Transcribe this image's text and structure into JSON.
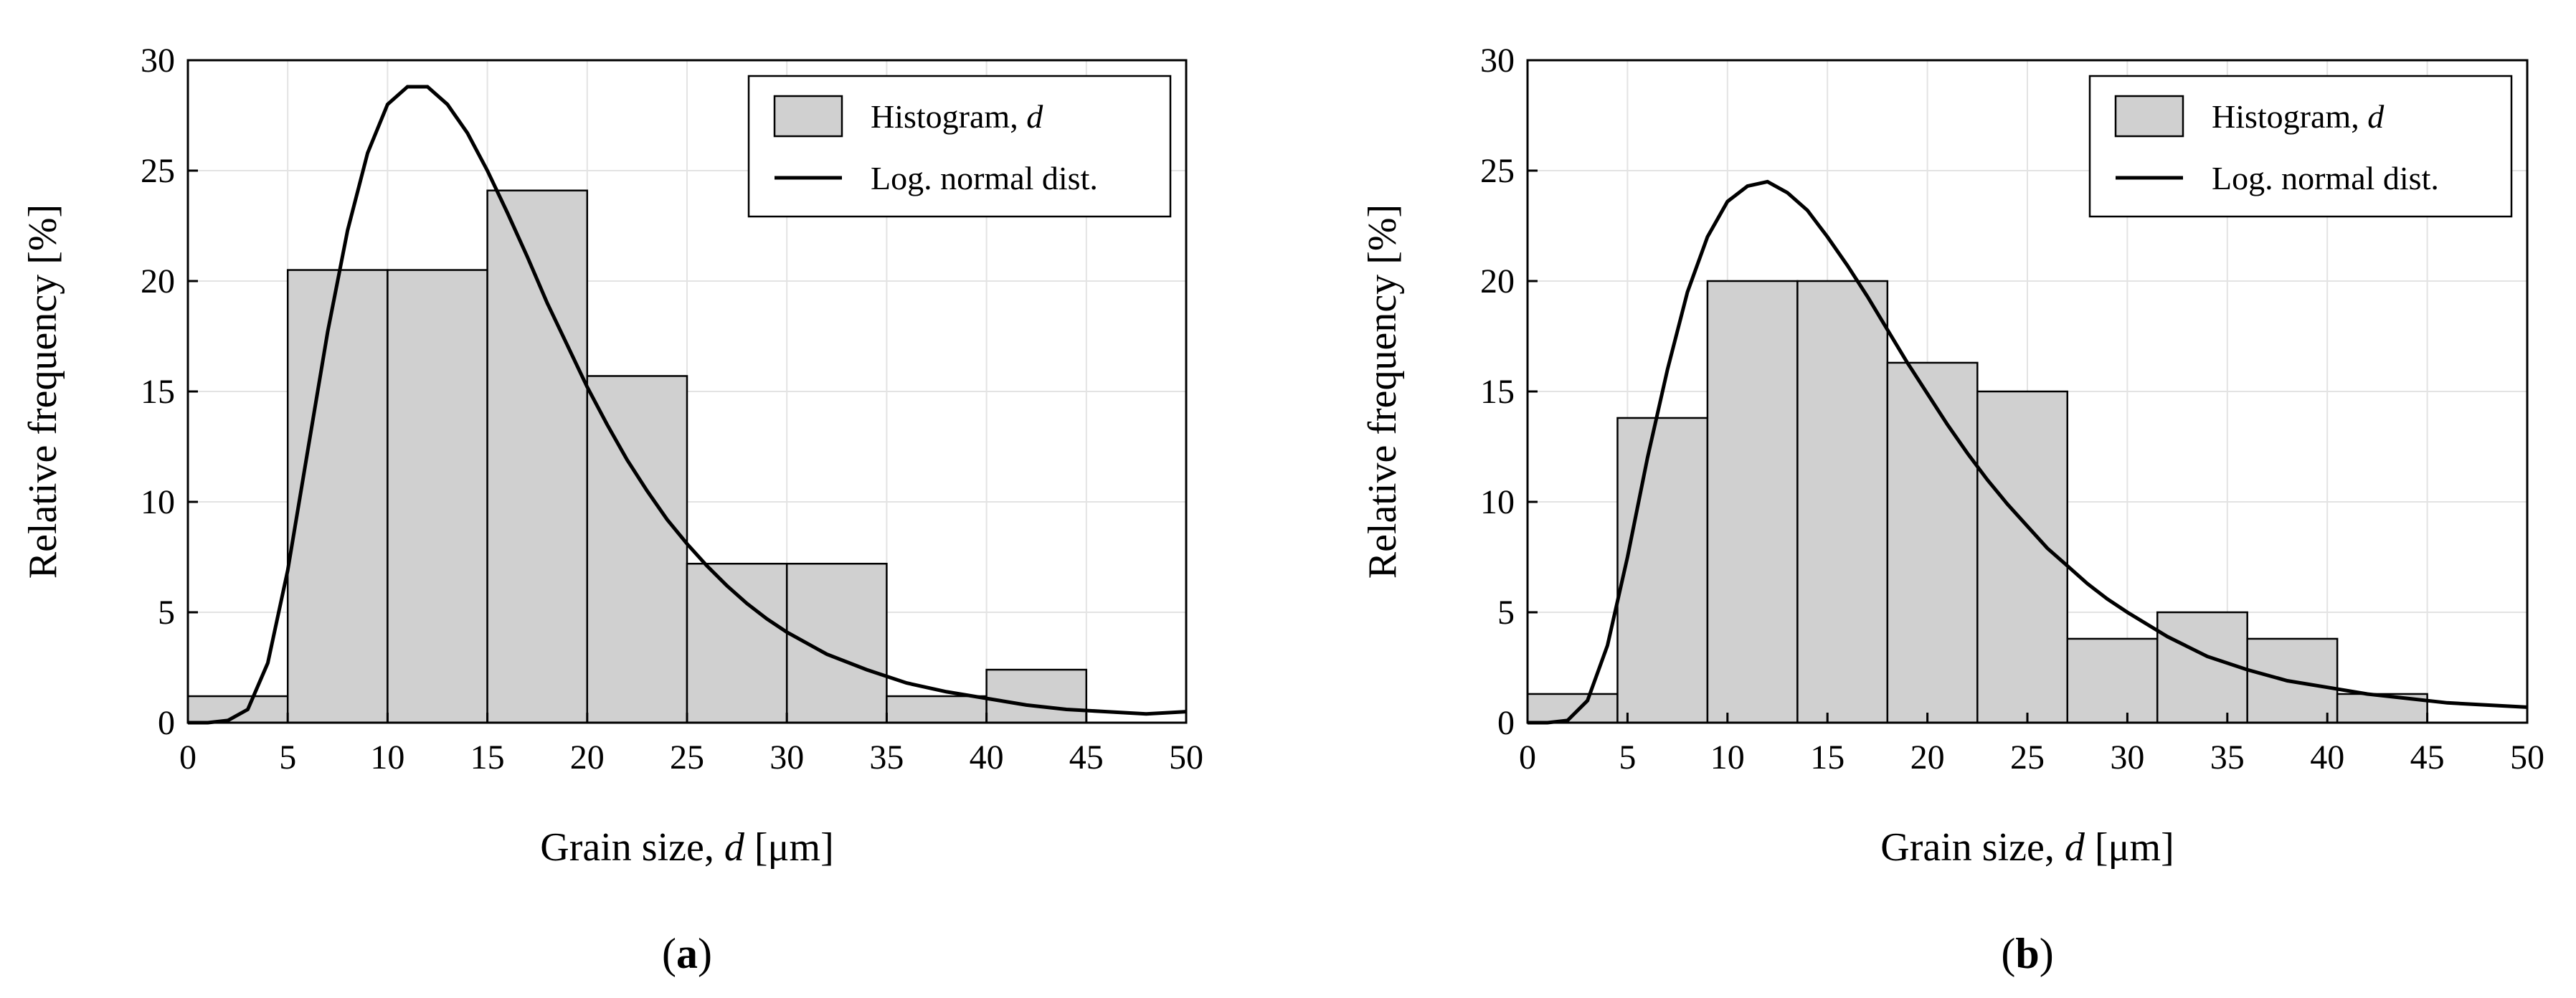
{
  "chart_data": [
    {
      "type": "bar",
      "panel_label": "a",
      "xlabel": "Grain size, d [μm]",
      "xlabel_prefix": "Grain size, ",
      "xlabel_var": "d",
      "xlabel_suffix": " [μm]",
      "ylabel": "Relative frequency [%]",
      "xlim": [
        0,
        50
      ],
      "ylim": [
        0,
        30
      ],
      "xticks": [
        0,
        5,
        10,
        15,
        20,
        25,
        30,
        35,
        40,
        45,
        50
      ],
      "yticks": [
        0,
        5,
        10,
        15,
        20,
        25,
        30
      ],
      "grid": true,
      "legend_position": "top-right",
      "legend": [
        {
          "label_prefix": "Histogram, ",
          "label_var": "d",
          "kind": "patch"
        },
        {
          "label_prefix": "Log. normal dist.",
          "label_var": "",
          "kind": "line"
        }
      ],
      "bins": [
        {
          "start": 0,
          "end": 5,
          "value": 1.2
        },
        {
          "start": 5,
          "end": 10,
          "value": 20.5
        },
        {
          "start": 10,
          "end": 15,
          "value": 20.5
        },
        {
          "start": 15,
          "end": 20,
          "value": 24.1
        },
        {
          "start": 20,
          "end": 25,
          "value": 15.7
        },
        {
          "start": 25,
          "end": 30,
          "value": 7.2
        },
        {
          "start": 30,
          "end": 35,
          "value": 7.2
        },
        {
          "start": 35,
          "end": 40,
          "value": 1.2
        },
        {
          "start": 40,
          "end": 45,
          "value": 2.4
        }
      ],
      "curve": {
        "name": "Log. normal dist.",
        "x": [
          0,
          1,
          2,
          3,
          4,
          5,
          6,
          7,
          8,
          9,
          10,
          11,
          12,
          13,
          14,
          15,
          16,
          17,
          18,
          19,
          20,
          21,
          22,
          23,
          24,
          25,
          26,
          27,
          28,
          29,
          30,
          32,
          34,
          36,
          38,
          40,
          42,
          44,
          46,
          48,
          50
        ],
        "y": [
          0,
          0.0,
          0.1,
          0.6,
          2.7,
          6.9,
          12.3,
          17.7,
          22.3,
          25.8,
          28.0,
          28.8,
          28.8,
          28.0,
          26.7,
          25.0,
          23.1,
          21.1,
          19.0,
          17.1,
          15.2,
          13.5,
          11.9,
          10.5,
          9.2,
          8.1,
          7.1,
          6.2,
          5.4,
          4.7,
          4.1,
          3.1,
          2.4,
          1.8,
          1.4,
          1.1,
          0.8,
          0.6,
          0.5,
          0.4,
          0.5
        ]
      }
    },
    {
      "type": "bar",
      "panel_label": "b",
      "xlabel": "Grain size, d [μm]",
      "xlabel_prefix": "Grain size, ",
      "xlabel_var": "d",
      "xlabel_suffix": " [μm]",
      "ylabel": "Relative frequency [%]",
      "xlim": [
        0,
        50
      ],
      "ylim": [
        0,
        30
      ],
      "xticks": [
        0,
        5,
        10,
        15,
        20,
        25,
        30,
        35,
        40,
        45,
        50
      ],
      "yticks": [
        0,
        5,
        10,
        15,
        20,
        25,
        30
      ],
      "grid": true,
      "legend_position": "top-right",
      "legend": [
        {
          "label_prefix": "Histogram, ",
          "label_var": "d",
          "kind": "patch"
        },
        {
          "label_prefix": "Log. normal dist.",
          "label_var": "",
          "kind": "line"
        }
      ],
      "bins": [
        {
          "start": 0,
          "end": 4.5,
          "value": 1.3
        },
        {
          "start": 4.5,
          "end": 9,
          "value": 13.8
        },
        {
          "start": 9,
          "end": 13.5,
          "value": 20.0
        },
        {
          "start": 13.5,
          "end": 18,
          "value": 20.0
        },
        {
          "start": 18,
          "end": 22.5,
          "value": 16.3
        },
        {
          "start": 22.5,
          "end": 27,
          "value": 15.0
        },
        {
          "start": 27,
          "end": 31.5,
          "value": 3.8
        },
        {
          "start": 31.5,
          "end": 36,
          "value": 5.0
        },
        {
          "start": 36,
          "end": 40.5,
          "value": 3.8
        },
        {
          "start": 40.5,
          "end": 45,
          "value": 1.3
        }
      ],
      "curve": {
        "name": "Log. normal dist.",
        "x": [
          0,
          1,
          2,
          3,
          4,
          5,
          6,
          7,
          8,
          9,
          10,
          11,
          12,
          13,
          14,
          15,
          16,
          17,
          18,
          19,
          20,
          21,
          22,
          23,
          24,
          25,
          26,
          27,
          28,
          29,
          30,
          32,
          34,
          36,
          38,
          40,
          42,
          44,
          46,
          48,
          50
        ],
        "y": [
          0,
          0.0,
          0.1,
          1.0,
          3.5,
          7.5,
          12.0,
          16.0,
          19.5,
          22.0,
          23.6,
          24.3,
          24.5,
          24.0,
          23.2,
          22.0,
          20.7,
          19.3,
          17.8,
          16.3,
          14.9,
          13.5,
          12.2,
          11.0,
          9.9,
          8.9,
          7.9,
          7.1,
          6.3,
          5.6,
          5.0,
          3.9,
          3.0,
          2.4,
          1.9,
          1.6,
          1.3,
          1.1,
          0.9,
          0.8,
          0.7
        ]
      }
    }
  ]
}
